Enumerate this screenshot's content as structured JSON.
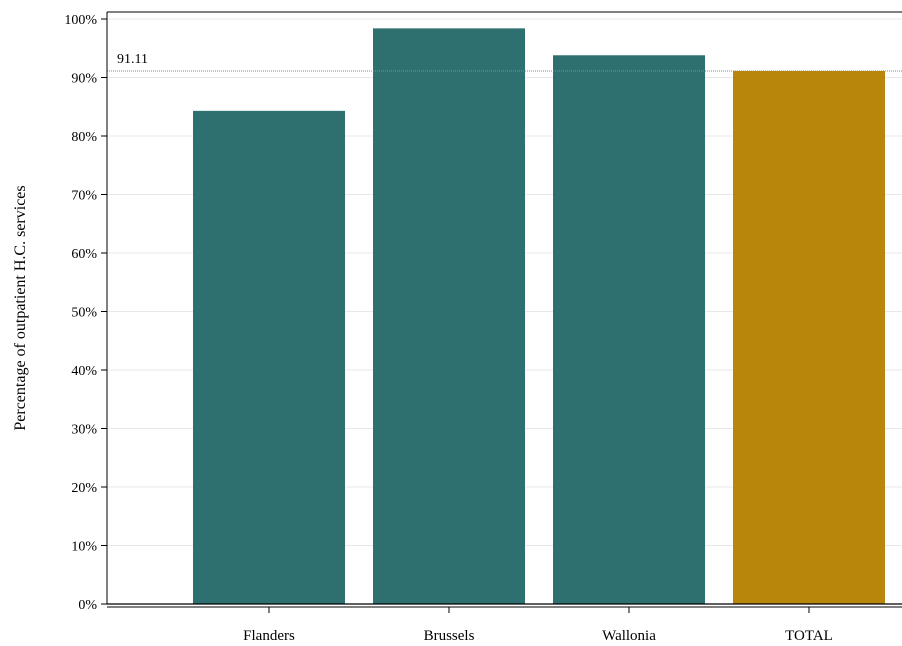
{
  "chart_data": {
    "type": "bar",
    "categories": [
      "Flanders",
      "Brussels",
      "Wallonia",
      "TOTAL"
    ],
    "values": [
      84.3,
      98.4,
      93.8,
      91.11
    ],
    "bar_colors": [
      "#2e7070",
      "#2e7070",
      "#2e7070",
      "#b8860b"
    ],
    "ylabel": "Percentage of outpatient H.C. services",
    "xlabel": "",
    "ylim": [
      0,
      100
    ],
    "yticks": [
      0,
      10,
      20,
      30,
      40,
      50,
      60,
      70,
      80,
      90,
      100
    ],
    "ytick_labels": [
      "0%",
      "10%",
      "20%",
      "30%",
      "40%",
      "50%",
      "60%",
      "70%",
      "80%",
      "90%",
      "100%"
    ],
    "reference_line": {
      "value": 91.11,
      "label": "91.11",
      "color": "#b8860b"
    },
    "grid": true,
    "legend": "none"
  }
}
